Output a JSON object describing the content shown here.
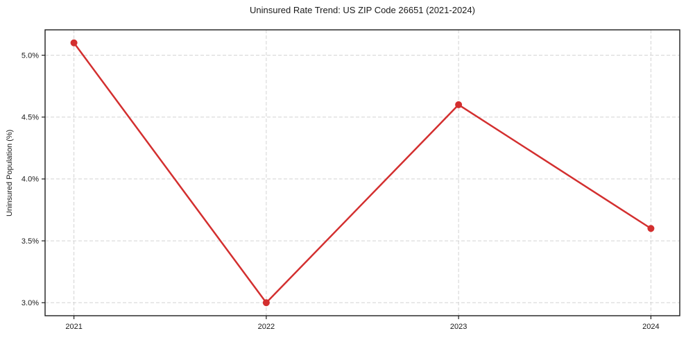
{
  "chart_data": {
    "type": "line",
    "title": "Uninsured Rate Trend: US ZIP Code 26651 (2021-2024)",
    "ylabel": "Uninsured Population (%)",
    "xlabel": "",
    "categories": [
      "2021",
      "2022",
      "2023",
      "2024"
    ],
    "series": [
      {
        "name": "Uninsured Rate",
        "values": [
          5.1,
          3.0,
          4.6,
          3.6
        ]
      }
    ],
    "ytick_values": [
      3.0,
      3.5,
      4.0,
      4.5,
      5.0
    ],
    "ytick_labels": [
      "3.0%",
      "3.5%",
      "4.0%",
      "4.5%",
      "5.0%"
    ],
    "ylim": [
      2.895,
      5.205
    ],
    "grid": "both",
    "grid_style": "dashed",
    "legend_position": "none",
    "line_color": "#d32f2f",
    "marker": "circle",
    "grid_color": "#d3d3d3",
    "axis_color": "#1d1d1d",
    "text_color": "#1a1a1a",
    "background_color": "#ffffff"
  }
}
